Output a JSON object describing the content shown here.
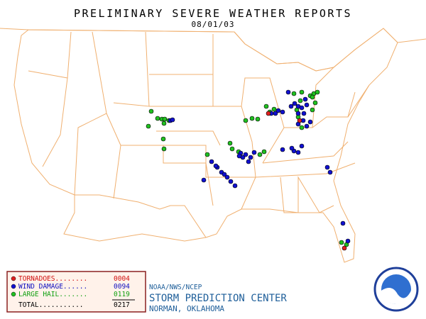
{
  "header": {
    "title": "PRELIMINARY SEVERE WEATHER REPORTS",
    "date": "08/01/03"
  },
  "legend": {
    "rows": [
      {
        "label": "TORNADOES........",
        "count": "0004"
      },
      {
        "label": "WIND DAMAGE......",
        "count": "0094"
      },
      {
        "label": "LARGE HAIL.......",
        "count": "0119"
      }
    ],
    "total": {
      "label": "TOTAL...........",
      "count": "0217"
    }
  },
  "footer": {
    "agency": "NOAA/NWS/NCEP",
    "center": "STORM PREDICTION CENTER",
    "location": "NORMAN, OKLAHOMA"
  }
}
